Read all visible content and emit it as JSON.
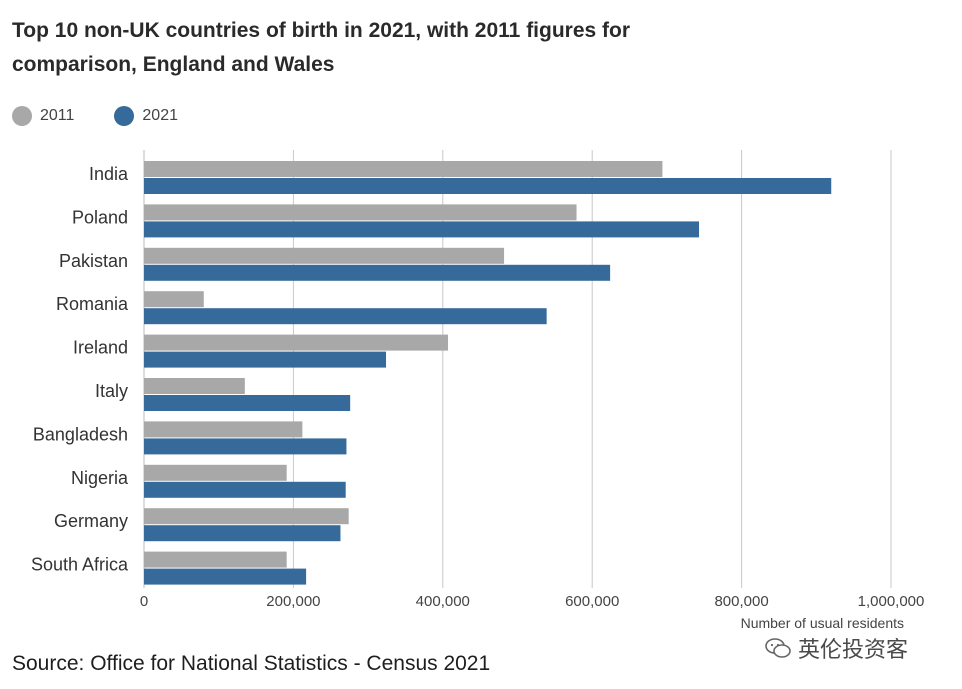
{
  "title": "Top 10 non-UK countries of birth in 2021, with 2011 figures for comparison, England and Wales",
  "colors": {
    "s2011": "#a8a8a8",
    "s2021": "#366a9b",
    "grid": "#c8c8c8",
    "tick": "#444444"
  },
  "chart_data": {
    "type": "bar",
    "orientation": "horizontal",
    "title": "Top 10 non-UK countries of birth in 2021, with 2011 figures for comparison, England and Wales",
    "xlabel": "Number of usual residents",
    "ylabel": "",
    "xlim": [
      0,
      1000000
    ],
    "xticks": [
      0,
      200000,
      400000,
      600000,
      800000,
      1000000
    ],
    "xtick_labels": [
      "0",
      "200,000",
      "400,000",
      "600,000",
      "800,000",
      "1,000,000"
    ],
    "grid": "vertical",
    "legend_position": "top-left",
    "categories": [
      "India",
      "Poland",
      "Pakistan",
      "Romania",
      "Ireland",
      "Italy",
      "Bangladesh",
      "Nigeria",
      "Germany",
      "South Africa"
    ],
    "series": [
      {
        "name": "2011",
        "values": [
          694000,
          579000,
          482000,
          80000,
          407000,
          135000,
          212000,
          191000,
          274000,
          191000
        ]
      },
      {
        "name": "2021",
        "values": [
          920000,
          743000,
          624000,
          539000,
          324000,
          276000,
          271000,
          270000,
          263000,
          217000
        ]
      }
    ]
  },
  "legend": {
    "label_2011": "2011",
    "label_2021": "2021"
  },
  "source": "Source: Office for National Statistics - Census 2021",
  "watermark": "英伦投资客"
}
